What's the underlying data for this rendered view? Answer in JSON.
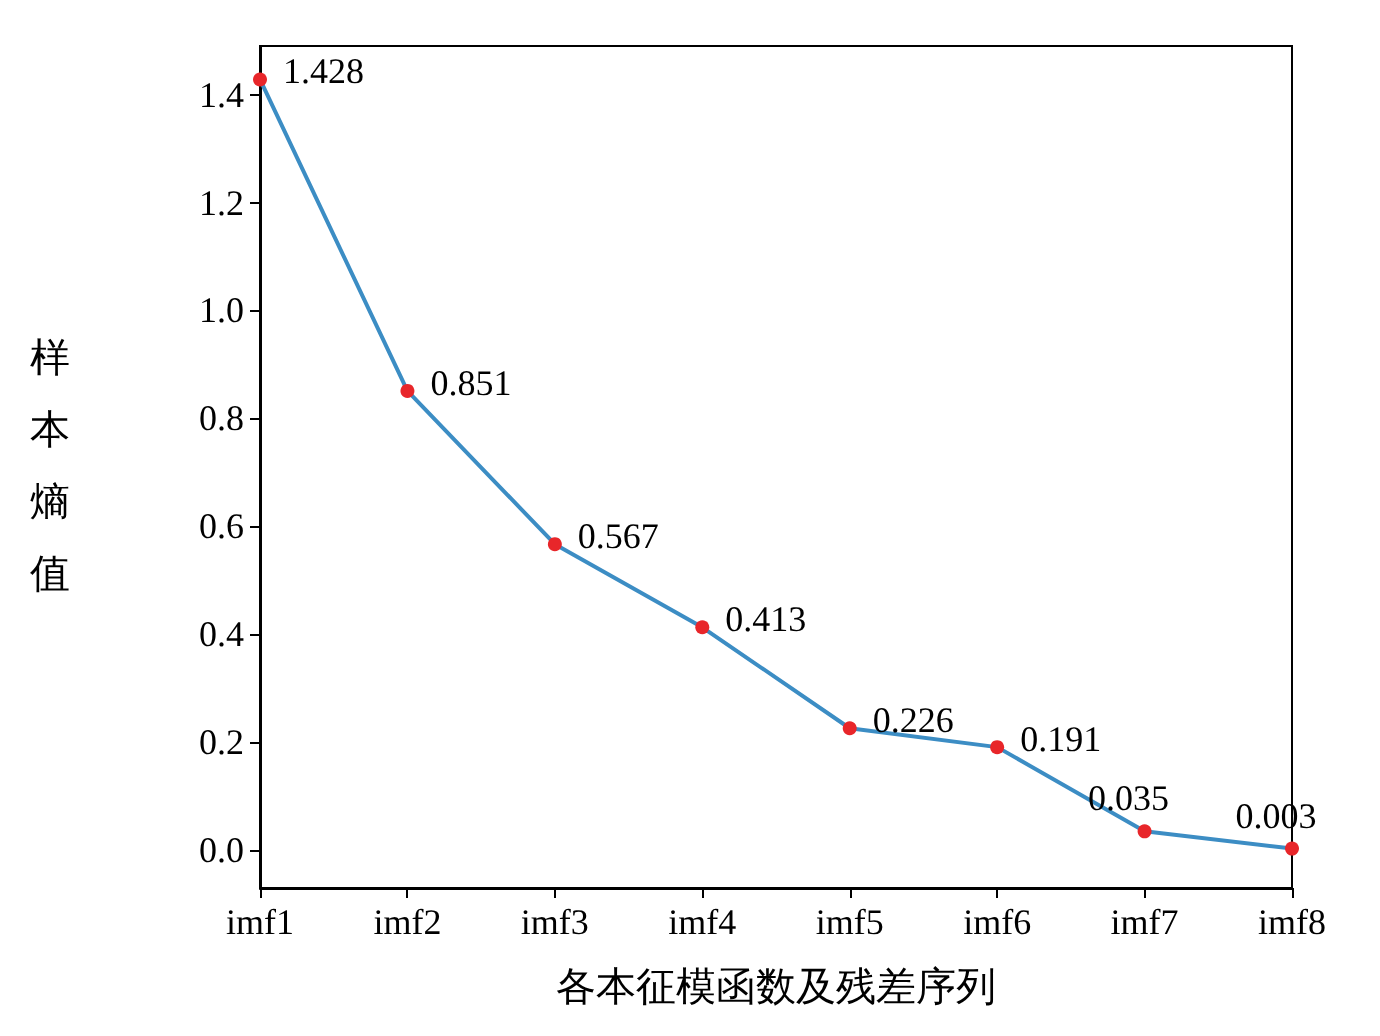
{
  "chart_data": {
    "type": "line",
    "xlabel": "各本征模函数及残差序列",
    "ylabel": "样本熵值",
    "categories": [
      "imf1",
      "imf2",
      "imf3",
      "imf4",
      "imf5",
      "imf6",
      "imf7",
      "imf8"
    ],
    "series": [
      {
        "color": "#3c8dc4",
        "colors": [
          "#e8262a",
          "#e8262a",
          "#e8262a",
          "#e8262a",
          "#e8262a",
          "#e8262a",
          "#e8262a",
          "#e8262a"
        ],
        "values": [
          1.428,
          0.851,
          0.567,
          0.413,
          0.226,
          0.191,
          0.035,
          0.003
        ]
      }
    ],
    "ylim": [
      -0.07,
      1.49
    ],
    "yticks": [
      {
        "value": 0,
        "label": "0.0"
      },
      0.2,
      0.4,
      0.6,
      0.8,
      {
        "value": 1,
        "label": "1.0"
      },
      1.2,
      1.4
    ],
    "data_labels": true,
    "marker": "circle",
    "grid": false
  }
}
